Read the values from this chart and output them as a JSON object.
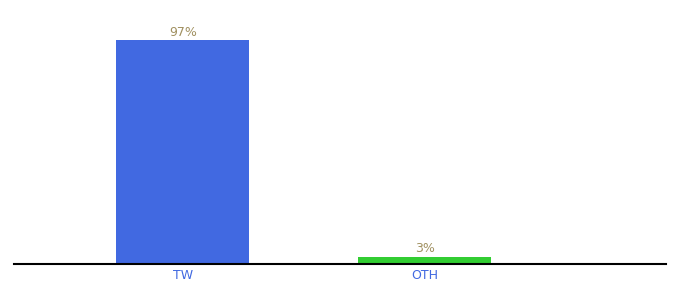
{
  "categories": [
    "TW",
    "OTH"
  ],
  "values": [
    97,
    3
  ],
  "bar_colors": [
    "#4169e1",
    "#32cd32"
  ],
  "labels": [
    "97%",
    "3%"
  ],
  "label_color": "#a09060",
  "ylim": [
    0,
    108
  ],
  "background_color": "#ffffff",
  "tick_color": "#4169e1",
  "axis_line_color": "#000000",
  "bar_width": 0.55,
  "xlim": [
    -0.2,
    2.5
  ]
}
